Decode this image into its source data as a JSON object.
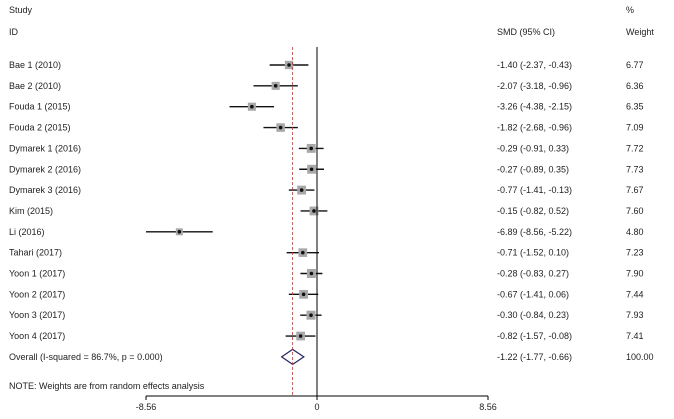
{
  "chart_data": {
    "type": "forest",
    "headers": {
      "study_top": "Study",
      "study_sub": "ID",
      "effect": "SMD (95% CI)",
      "weight_top": "%",
      "weight_sub": "Weight"
    },
    "studies": [
      {
        "label": "Bae 1 (2010)",
        "est": -1.4,
        "lo": -2.37,
        "hi": -0.43,
        "ci_text": "-1.40 (-2.37, -0.43)",
        "weight": "6.77"
      },
      {
        "label": "Bae 2 (2010)",
        "est": -2.07,
        "lo": -3.18,
        "hi": -0.96,
        "ci_text": "-2.07 (-3.18, -0.96)",
        "weight": "6.36"
      },
      {
        "label": "Fouda 1 (2015)",
        "est": -3.26,
        "lo": -4.38,
        "hi": -2.15,
        "ci_text": "-3.26 (-4.38, -2.15)",
        "weight": "6.35"
      },
      {
        "label": "Fouda 2 (2015)",
        "est": -1.82,
        "lo": -2.68,
        "hi": -0.96,
        "ci_text": "-1.82 (-2.68, -0.96)",
        "weight": "7.09"
      },
      {
        "label": "Dymarek 1 (2016)",
        "est": -0.29,
        "lo": -0.91,
        "hi": 0.33,
        "ci_text": "-0.29 (-0.91, 0.33)",
        "weight": "7.72"
      },
      {
        "label": "Dymarek 2 (2016)",
        "est": -0.27,
        "lo": -0.89,
        "hi": 0.35,
        "ci_text": "-0.27 (-0.89, 0.35)",
        "weight": "7.73"
      },
      {
        "label": "Dymarek 3 (2016)",
        "est": -0.77,
        "lo": -1.41,
        "hi": -0.13,
        "ci_text": "-0.77 (-1.41, -0.13)",
        "weight": "7.67"
      },
      {
        "label": "Kim  (2015)",
        "est": -0.15,
        "lo": -0.82,
        "hi": 0.52,
        "ci_text": "-0.15 (-0.82, 0.52)",
        "weight": "7.60"
      },
      {
        "label": "Li  (2016)",
        "est": -6.89,
        "lo": -8.56,
        "hi": -5.22,
        "ci_text": "-6.89 (-8.56, -5.22)",
        "weight": "4.80"
      },
      {
        "label": "Tahari (2017)",
        "est": -0.71,
        "lo": -1.52,
        "hi": 0.1,
        "ci_text": "-0.71 (-1.52, 0.10)",
        "weight": "7.23"
      },
      {
        "label": "Yoon 1 (2017)",
        "est": -0.28,
        "lo": -0.83,
        "hi": 0.27,
        "ci_text": "-0.28 (-0.83, 0.27)",
        "weight": "7.90"
      },
      {
        "label": "Yoon 2 (2017)",
        "est": -0.67,
        "lo": -1.41,
        "hi": 0.06,
        "ci_text": "-0.67 (-1.41, 0.06)",
        "weight": "7.44"
      },
      {
        "label": "Yoon 3 (2017)",
        "est": -0.3,
        "lo": -0.84,
        "hi": 0.23,
        "ci_text": "-0.30 (-0.84, 0.23)",
        "weight": "7.93"
      },
      {
        "label": "Yoon 4 (2017)",
        "est": -0.82,
        "lo": -1.57,
        "hi": -0.08,
        "ci_text": "-0.82 (-1.57, -0.08)",
        "weight": "7.41"
      }
    ],
    "overall": {
      "label": "Overall  (I-squared = 86.7%, p = 0.000)",
      "est": -1.22,
      "lo": -1.77,
      "hi": -0.66,
      "ci_text": "-1.22 (-1.77, -0.66)",
      "weight": "100.00"
    },
    "note": "NOTE: Weights are from random effects analysis",
    "x_ticks": [
      -8.56,
      0,
      8.56
    ],
    "x_tick_labels": [
      "-8.56",
      "0",
      "8.56"
    ],
    "xlim": [
      -8.56,
      8.56
    ],
    "null_line": 0,
    "colors": {
      "text": "#222222",
      "ci": "#111111",
      "box": "#a8a8a8",
      "diamond": "#2a2560",
      "dashed": "#b03a3a"
    }
  }
}
